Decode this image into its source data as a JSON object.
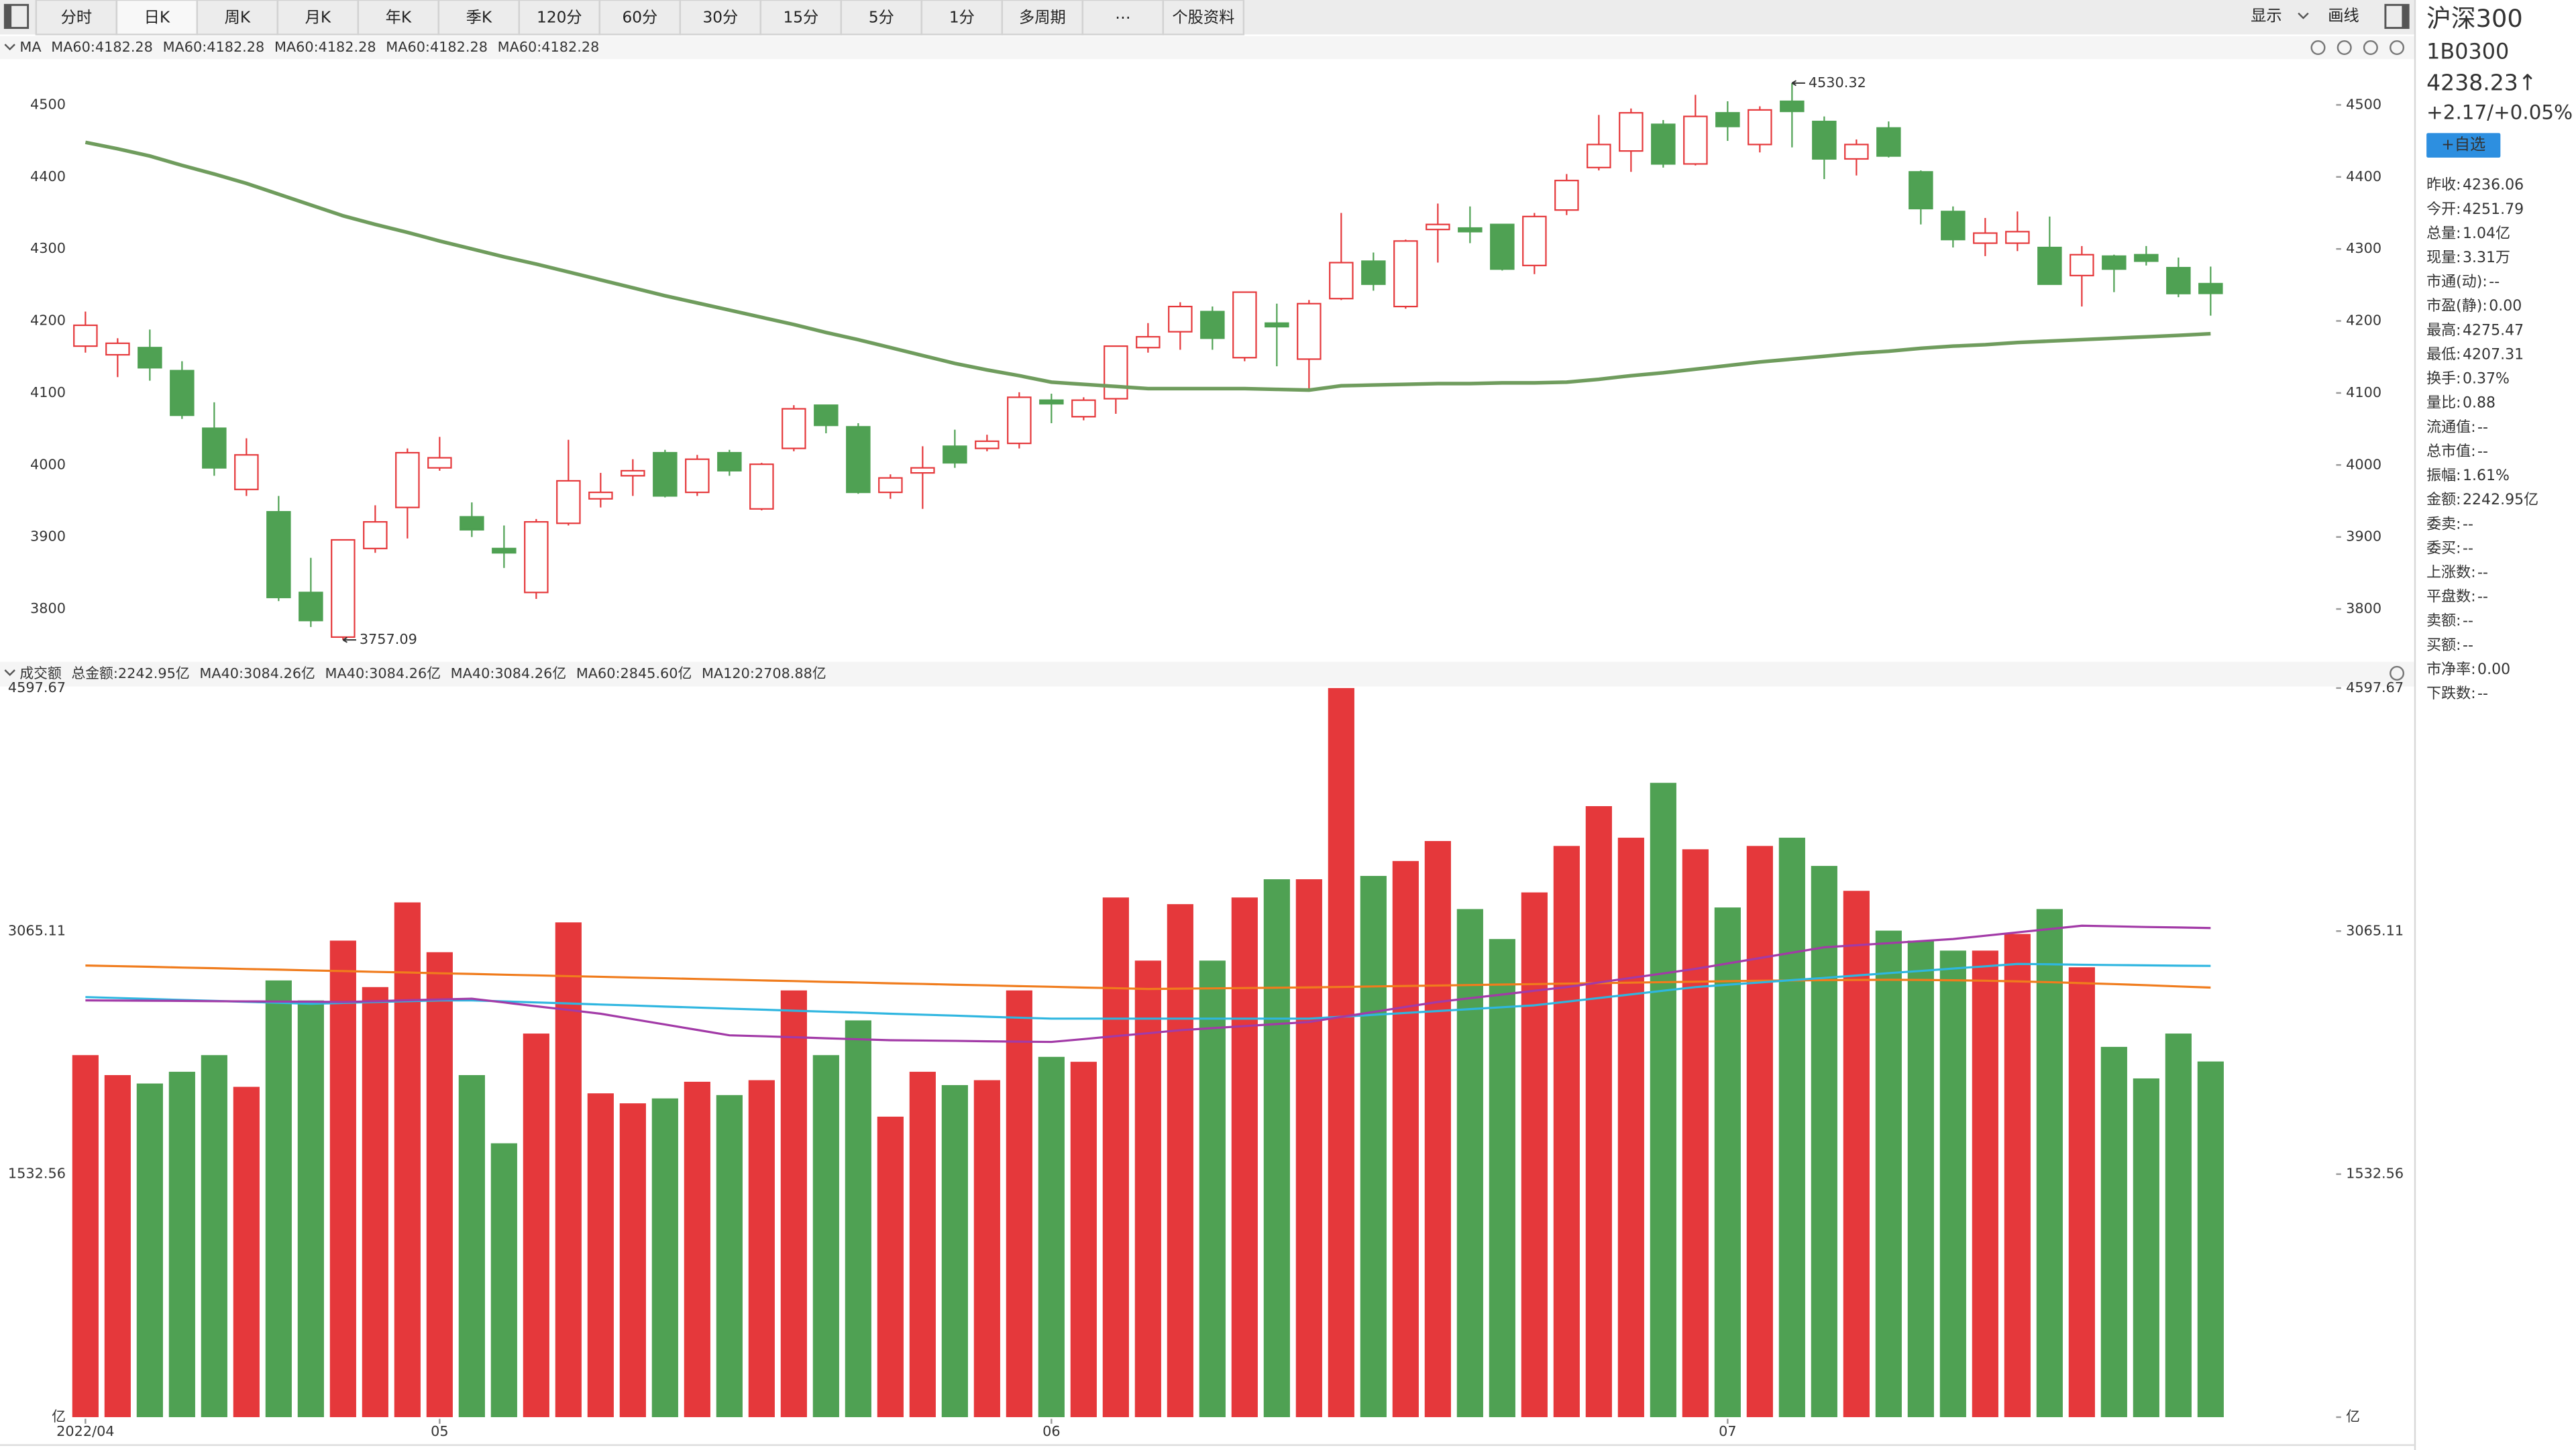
{
  "toolbar": {
    "tabs": [
      "分时",
      "日K",
      "周K",
      "月K",
      "年K",
      "季K",
      "120分",
      "60分",
      "30分",
      "15分",
      "5分",
      "1分",
      "多周期",
      "⋯",
      "个股资料"
    ],
    "selected": 1,
    "right": [
      "显示",
      "画线"
    ]
  },
  "indicator_bar": {
    "label": "MA",
    "items": [
      {
        "text": "MA60:4182.28",
        "color": "#3d9be9"
      },
      {
        "text": "MA60:4182.28",
        "color": "#b04ab9"
      },
      {
        "text": "MA60:4182.28",
        "color": "#33b7e3"
      },
      {
        "text": "MA60:4182.28",
        "color": "#ef6a2a"
      },
      {
        "text": "MA60:4182.28",
        "color": "#5aa35a"
      }
    ]
  },
  "volume_bar": {
    "label": "成交额",
    "items": [
      {
        "text": "总金额:2242.95亿",
        "color": "#4fa153"
      },
      {
        "text": "MA40:3084.26亿",
        "color": "#f07c1d"
      },
      {
        "text": "MA40:3084.26亿",
        "color": "#2e88d8"
      },
      {
        "text": "MA40:3084.26亿",
        "color": "#a23aa7"
      },
      {
        "text": "MA60:2845.60亿",
        "color": "#2fb6e0"
      },
      {
        "text": "MA120:2708.88亿",
        "color": "#e8572e"
      }
    ]
  },
  "sidebar": {
    "name": "沪深300",
    "code": "1B0300",
    "price": "4238.23↑",
    "change": "+2.17/+0.05%",
    "button": "+自选",
    "rows": [
      {
        "label": "昨收:",
        "value": "4236.06",
        "color": "#222"
      },
      {
        "label": "今开:",
        "value": "4251.79",
        "color": "#e5383b"
      },
      {
        "label": "总量:",
        "value": "1.04亿",
        "color": "#222"
      },
      {
        "label": "现量:",
        "value": "3.31万",
        "color": "#222"
      },
      {
        "label": "市通(动):",
        "value": "--",
        "color": "#222"
      },
      {
        "label": "市盈(静):",
        "value": "0.00",
        "color": "#222"
      },
      {
        "label": "最高:",
        "value": "4275.47",
        "color": "#e5383b"
      },
      {
        "label": "最低:",
        "value": "4207.31",
        "color": "#3a9a45"
      },
      {
        "label": "换手:",
        "value": "0.37%",
        "color": "#222"
      },
      {
        "label": "量比:",
        "value": "0.88",
        "color": "#222"
      },
      {
        "label": "流通值:",
        "value": "--",
        "color": "#222"
      },
      {
        "label": "总市值:",
        "value": "--",
        "color": "#222"
      },
      {
        "label": "振幅:",
        "value": "1.61%",
        "color": "#222"
      },
      {
        "label": "金额:",
        "value": "2242.95亿",
        "color": "#222"
      },
      {
        "label": "委卖:",
        "value": "--",
        "color": "#222"
      },
      {
        "label": "委买:",
        "value": "--",
        "color": "#222"
      },
      {
        "label": "上涨数:",
        "value": "--",
        "color": "#222"
      },
      {
        "label": "平盘数:",
        "value": "--",
        "color": "#222"
      },
      {
        "label": "卖额:",
        "value": "--",
        "color": "#222"
      },
      {
        "label": "买额:",
        "value": "--",
        "color": "#222"
      },
      {
        "label": "市净率:",
        "value": "0.00",
        "color": "#222"
      },
      {
        "label": "下跌数:",
        "value": "--",
        "color": "#222"
      }
    ]
  },
  "chart_data": [
    {
      "type": "candlestick",
      "up_color": "#e5383b",
      "down_color": "#4fa153",
      "mark_extremes": true,
      "open": [
        4165,
        4153,
        4163,
        4131,
        4051,
        3966,
        3935,
        3823,
        3761,
        3884,
        3941,
        3996,
        3928,
        3884,
        3823,
        3919,
        3953,
        3985,
        4017,
        3962,
        4017,
        3939,
        4023,
        4083,
        4053,
        3962,
        3989,
        4026,
        4023,
        4030,
        4090,
        4067,
        4092,
        4163,
        4185,
        4213,
        4149,
        4197,
        4147,
        4231,
        4283,
        4220,
        4327,
        4329,
        4334,
        4277,
        4354,
        4413,
        4436,
        4473,
        4418,
        4489,
        4445,
        4505,
        4477,
        4425,
        4468,
        4407,
        4352,
        4308,
        4308,
        4302,
        4263,
        4290,
        4292,
        4274,
        4251.79
      ],
      "high": [
        4213,
        4176,
        4188,
        4144,
        4087,
        4037,
        3957,
        3871,
        3896,
        3944,
        4023,
        4039,
        3948,
        3916,
        3925,
        4035,
        3989,
        4008,
        4021,
        4014,
        4021,
        4003,
        4083,
        4083,
        4058,
        3987,
        4026,
        4049,
        4042,
        4101,
        4099,
        4094,
        4165,
        4197,
        4226,
        4220,
        4240,
        4224,
        4229,
        4350,
        4295,
        4313,
        4363,
        4359,
        4334,
        4350,
        4404,
        4486,
        4495,
        4479,
        4514,
        4505,
        4498,
        4530.32,
        4484,
        4452,
        4477,
        4409,
        4359,
        4343,
        4352,
        4345,
        4304,
        4292,
        4304,
        4288,
        4275.47
      ],
      "low": [
        4156,
        4122,
        4117,
        4064,
        3985,
        3957,
        3811,
        3775,
        3757.09,
        3878,
        3898,
        3992,
        3900,
        3857,
        3814,
        3916,
        3941,
        3957,
        3955,
        3957,
        3985,
        3937,
        4019,
        4044,
        3960,
        3953,
        3939,
        3996,
        4019,
        4023,
        4058,
        4062,
        4071,
        4156,
        4160,
        4160,
        4144,
        4137,
        4106,
        4229,
        4242,
        4217,
        4281,
        4308,
        4270,
        4265,
        4347,
        4409,
        4407,
        4413,
        4416,
        4450,
        4434,
        4441,
        4397,
        4402,
        4427,
        4334,
        4302,
        4290,
        4297,
        4251,
        4220,
        4240,
        4277,
        4233,
        4207.31
      ],
      "close": [
        4194,
        4169,
        4135,
        4069,
        3996,
        4014,
        3816,
        3784,
        3896,
        3921,
        4017,
        4010,
        3910,
        3878,
        3921,
        3978,
        3962,
        3992,
        3957,
        4008,
        3992,
        4001,
        4078,
        4055,
        3962,
        3982,
        3996,
        4003,
        4033,
        4094,
        4085,
        4090,
        4165,
        4178,
        4220,
        4176,
        4240,
        4192,
        4224,
        4281,
        4251,
        4311,
        4334,
        4324,
        4272,
        4345,
        4395,
        4445,
        4489,
        4418,
        4484,
        4470,
        4493,
        4491,
        4425,
        4445,
        4429,
        4356,
        4313,
        4322,
        4324,
        4251,
        4292,
        4272,
        4283,
        4238,
        4238.23
      ],
      "series": [
        {
          "color": "#6f9c5d",
          "values": [
            4448,
            4439,
            4429,
            4416,
            4404,
            4391,
            4376,
            4361,
            4346,
            4334,
            4323,
            4311,
            4300,
            4289,
            4279,
            4268,
            4257,
            4246,
            4235,
            4225,
            4215,
            4205,
            4195,
            4184,
            4174,
            4163,
            4152,
            4141,
            4132,
            4124,
            4115,
            4112,
            4109,
            4106,
            4106,
            4106,
            4106,
            4105,
            4104,
            4110,
            4111,
            4112,
            4113,
            4113,
            4114,
            4114,
            4115,
            4119,
            4124,
            4128,
            4133,
            4138,
            4143,
            4147,
            4151,
            4155,
            4158,
            4162,
            4165,
            4167,
            4170,
            4172,
            4174,
            4176,
            4178,
            4180,
            4182.28
          ]
        }
      ],
      "ylim": [
        3729,
        4559
      ],
      "yticks": [
        3800,
        3900,
        4000,
        4100,
        4200,
        4300,
        4400,
        4500
      ]
    },
    {
      "type": "bar",
      "categories": [
        "2022/04",
        null,
        null,
        null,
        null,
        null,
        null,
        null,
        null,
        null,
        null,
        "05",
        null,
        null,
        null,
        null,
        null,
        null,
        null,
        null,
        null,
        null,
        null,
        null,
        null,
        null,
        null,
        null,
        null,
        null,
        "06",
        null,
        null,
        null,
        null,
        null,
        null,
        null,
        null,
        null,
        null,
        null,
        null,
        null,
        null,
        null,
        null,
        null,
        null,
        null,
        null,
        "07",
        null,
        null,
        null,
        null,
        null,
        null,
        null,
        null,
        null,
        null,
        null,
        null,
        null,
        null,
        null
      ],
      "values": [
        2283,
        2157,
        2104,
        2178,
        2283,
        2083,
        2754,
        2628,
        3005,
        2712,
        3246,
        2932,
        2157,
        1727,
        2419,
        3120,
        2042,
        1979,
        2010,
        2115,
        2031,
        2125,
        2691,
        2283,
        2502,
        1895,
        2178,
        2094,
        2125,
        2691,
        2272,
        2241,
        3277,
        2879,
        3235,
        2879,
        3277,
        3392,
        3392,
        4597.67,
        3413,
        3507,
        3633,
        3204,
        3015,
        3309,
        3602,
        3853,
        3654,
        4000,
        3581,
        3214,
        3602,
        3654,
        3476,
        3319,
        3068,
        3005,
        2942,
        2942,
        3047,
        3204,
        2837,
        2335,
        2136,
        2419,
        2242.95
      ],
      "series": [
        {
          "color": "#f07c1d",
          "values": [
            2848,
            2844,
            2840,
            2835,
            2831,
            2826,
            2822,
            2817,
            2813,
            2808,
            2804,
            2799,
            2795,
            2790,
            2786,
            2781,
            2777,
            2772,
            2768,
            2763,
            2759,
            2754,
            2750,
            2745,
            2741,
            2736,
            2732,
            2727,
            2723,
            2718,
            2714,
            2709,
            2705,
            2700,
            2702,
            2704,
            2706,
            2708,
            2710,
            2713,
            2716,
            2719,
            2722,
            2725,
            2728,
            2731,
            2734,
            2737,
            2740,
            2743,
            2746,
            2749,
            2752,
            2754,
            2756,
            2757,
            2758,
            2757,
            2755,
            2752,
            2748,
            2743,
            2737,
            2731,
            2724,
            2716,
            2708.88
          ]
        },
        {
          "color": "#2fb6e0",
          "values": [
            2649,
            2643,
            2637,
            2631,
            2625,
            2619,
            2613,
            2607,
            2612,
            2618,
            2623,
            2628,
            2628,
            2622,
            2615,
            2609,
            2602,
            2596,
            2589,
            2583,
            2576,
            2570,
            2563,
            2557,
            2551,
            2544,
            2538,
            2532,
            2525,
            2519,
            2513,
            2513,
            2513,
            2513,
            2513,
            2513,
            2513,
            2513,
            2513,
            2525,
            2537,
            2549,
            2561,
            2573,
            2585,
            2597,
            2620,
            2643,
            2666,
            2689,
            2712,
            2727,
            2741,
            2756,
            2770,
            2785,
            2800,
            2814,
            2829,
            2843,
            2858,
            2856,
            2853,
            2851,
            2849,
            2847,
            2845.6
          ]
        },
        {
          "color": "#a23aa7",
          "values": [
            2628,
            2627,
            2626,
            2625,
            2623,
            2622,
            2621,
            2620,
            2618,
            2623,
            2629,
            2634,
            2639,
            2615,
            2591,
            2568,
            2544,
            2510,
            2476,
            2442,
            2408,
            2402,
            2396,
            2389,
            2383,
            2377,
            2375,
            2373,
            2370,
            2368,
            2366,
            2384,
            2403,
            2421,
            2440,
            2453,
            2466,
            2479,
            2492,
            2524,
            2555,
            2587,
            2618,
            2642,
            2665,
            2689,
            2712,
            2741,
            2770,
            2798,
            2827,
            2861,
            2895,
            2929,
            2963,
            2976,
            2989,
            3002,
            3015,
            3036,
            3057,
            3078,
            3099,
            3095,
            3091,
            3088,
            3084.26
          ]
        }
      ],
      "ylim": [
        0,
        4597.67
      ],
      "yticks": [
        {
          "value": 0,
          "label": "亿"
        },
        1532.56,
        3065.11,
        4597.67
      ]
    }
  ]
}
